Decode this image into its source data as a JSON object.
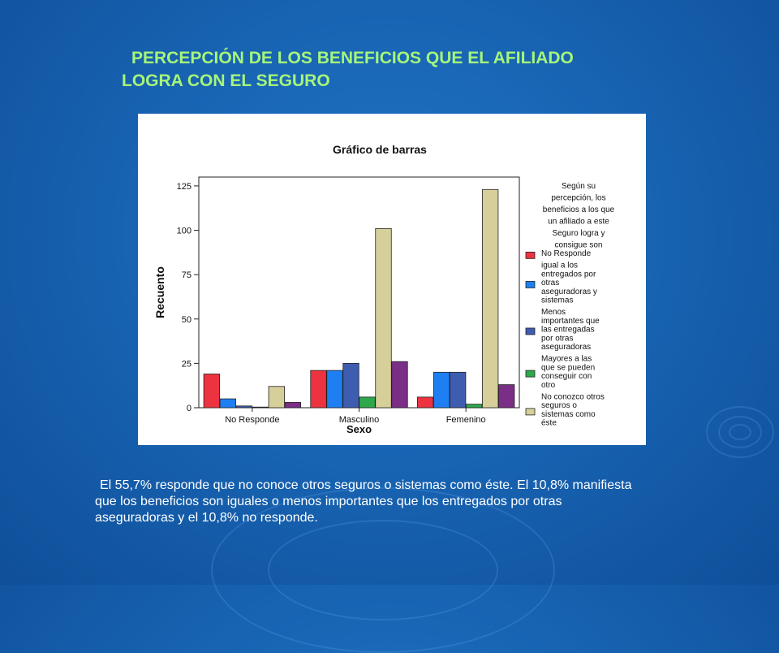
{
  "slide": {
    "title_line1": "PERCEPCIÓN DE LOS BENEFICIOS QUE EL AFILIADO",
    "title_line2": "LOGRA CON EL SEGURO",
    "caption_line1": "El  55,7% responde que no conoce otros seguros o sistemas como éste. El 10,8% manifiesta",
    "caption_line2": "que los beneficios son iguales o menos importantes que los entregados por otras",
    "caption_line3": "aseguradoras y el 10,8% no responde."
  },
  "chart_data": {
    "type": "bar",
    "title": "Gráfico de barras",
    "xlabel": "Sexo",
    "ylabel": "Recuento",
    "categories": [
      "No Responde",
      "Masculino",
      "Femenino"
    ],
    "ylim": [
      0,
      130
    ],
    "yticks": [
      0,
      25,
      50,
      75,
      100,
      125
    ],
    "grid": false,
    "legend_position": "right",
    "legend_title": [
      "Según su",
      "percepción, los",
      "beneficios a los que",
      "un afiliado a este",
      "Seguro logra y",
      "consigue son"
    ],
    "series": [
      {
        "name": "No Responde",
        "label_lines": [
          "No Responde"
        ],
        "color": "#ee3340",
        "values": [
          19,
          21,
          6
        ]
      },
      {
        "name": "igual a los entregados por otras aseguradoras y sistemas",
        "label_lines": [
          "igual a los",
          "entregados por",
          "otras",
          "aseguradoras y",
          "sistemas"
        ],
        "color": "#1d7ff2",
        "values": [
          5,
          21,
          20
        ]
      },
      {
        "name": "Menos importantes que las entregadas por otras aseguradoras",
        "label_lines": [
          "Menos",
          "importantes  que",
          "las entregadas",
          "por otras",
          "aseguradoras"
        ],
        "color": "#3e5db0",
        "values": [
          1,
          25,
          20
        ]
      },
      {
        "name": "Mayores a las que se pueden conseguir con otro",
        "label_lines": [
          "Mayores a las",
          "que se pueden",
          "conseguir con",
          "otro"
        ],
        "color": "#2ea84a",
        "values": [
          0,
          6,
          2
        ]
      },
      {
        "name": "No conozco otros seguros o sistemas como éste",
        "label_lines": [
          "No conozco otros",
          "seguros o",
          "sistemas como",
          "éste"
        ],
        "color": "#d6cf9a",
        "values": [
          12,
          101,
          123
        ]
      },
      {
        "name": "",
        "label_lines": [],
        "color": "#7a2e86",
        "values": [
          3,
          26,
          13
        ]
      }
    ]
  }
}
